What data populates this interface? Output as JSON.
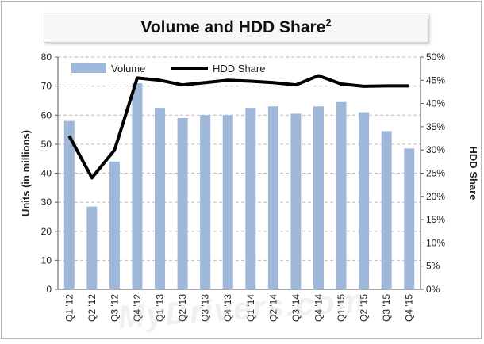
{
  "title_main": "Volume and HDD Share",
  "title_sup": "2",
  "watermark": "MyDrivers.com",
  "chart_data": {
    "type": "bar",
    "title": "Volume and HDD Share2",
    "categories": [
      "Q1 '12",
      "Q2 '12",
      "Q3 '12",
      "Q4 '12",
      "Q1 '13",
      "Q2 '13",
      "Q3 '13",
      "Q4 '13",
      "Q1 '14",
      "Q2 '14",
      "Q3 '14",
      "Q4 '14",
      "Q1 '15",
      "Q2 '15",
      "Q3 '15",
      "Q4 '15"
    ],
    "ylabel": "Units (in millions)",
    "y2label": "HDD Share",
    "ylim": [
      0,
      80
    ],
    "y2lim": [
      0,
      50
    ],
    "yticks": [
      "0",
      "10",
      "20",
      "30",
      "40",
      "50",
      "60",
      "70",
      "80"
    ],
    "y2ticks": [
      "0%",
      "5%",
      "10%",
      "15%",
      "20%",
      "25%",
      "30%",
      "35%",
      "40%",
      "45%",
      "50%"
    ],
    "grid": "dashed-horizontal",
    "legend_position": "top-left",
    "series": [
      {
        "name": "Volume",
        "type": "bar",
        "axis": "left",
        "color": "#9fb7d9",
        "values": [
          58,
          28.5,
          44,
          71,
          62.5,
          59,
          60,
          60,
          62.5,
          63,
          60.5,
          63,
          64.5,
          61,
          54.5,
          48.5
        ]
      },
      {
        "name": "HDD Share",
        "type": "line",
        "axis": "right",
        "color": "#000000",
        "values": [
          33,
          24,
          30,
          45.5,
          45,
          44,
          44.5,
          45,
          44.8,
          44.5,
          44,
          46,
          44.2,
          43.7,
          43.8,
          43.8
        ]
      }
    ]
  }
}
